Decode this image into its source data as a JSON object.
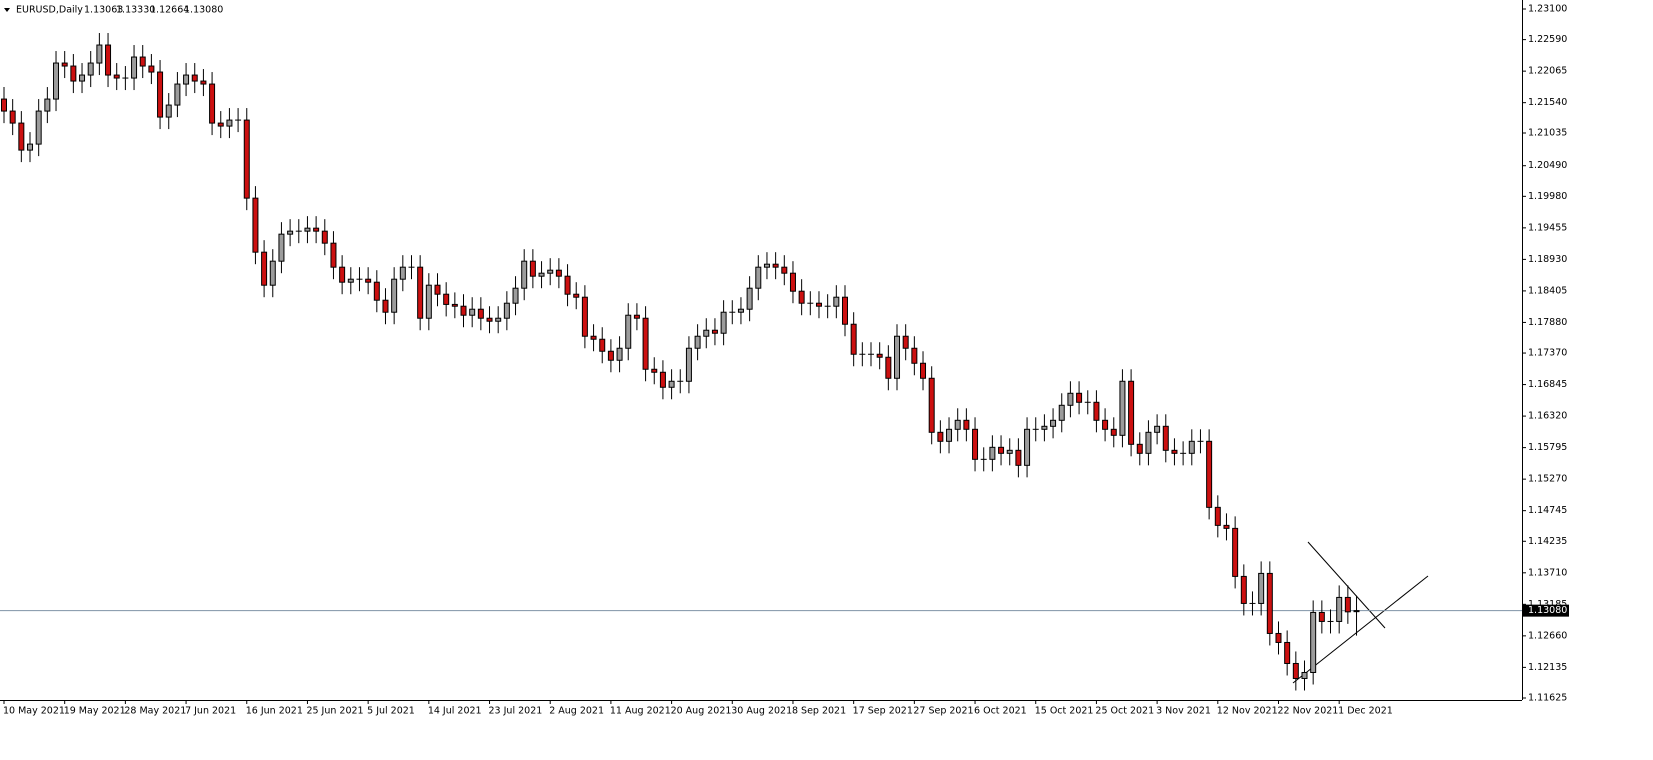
{
  "chart_data": {
    "type": "candlestick",
    "header": {
      "symbol": "EURUSD,Daily",
      "ohlc": [
        "1.13063",
        "1.13330",
        "1.12664",
        "1.13080"
      ]
    },
    "categories": [
      "10 May 2021",
      null,
      null,
      null,
      null,
      null,
      null,
      "19 May 2021",
      null,
      null,
      null,
      null,
      null,
      null,
      "28 May 2021",
      null,
      null,
      null,
      null,
      null,
      null,
      "7 Jun 2021",
      null,
      null,
      null,
      null,
      null,
      null,
      "16 Jun 2021",
      null,
      null,
      null,
      null,
      null,
      null,
      "25 Jun 2021",
      null,
      null,
      null,
      null,
      null,
      null,
      "5 Jul 2021",
      null,
      null,
      null,
      null,
      null,
      null,
      "14 Jul 2021",
      null,
      null,
      null,
      null,
      null,
      null,
      "23 Jul 2021",
      null,
      null,
      null,
      null,
      null,
      null,
      "2 Aug 2021",
      null,
      null,
      null,
      null,
      null,
      null,
      "11 Aug 2021",
      null,
      null,
      null,
      null,
      null,
      null,
      "20 Aug 2021",
      null,
      null,
      null,
      null,
      null,
      null,
      "30 Aug 2021",
      null,
      null,
      null,
      null,
      null,
      null,
      "8 Sep 2021",
      null,
      null,
      null,
      null,
      null,
      null,
      "17 Sep 2021",
      null,
      null,
      null,
      null,
      null,
      null,
      "27 Sep 2021",
      null,
      null,
      null,
      null,
      null,
      null,
      "6 Oct 2021",
      null,
      null,
      null,
      null,
      null,
      null,
      "15 Oct 2021",
      null,
      null,
      null,
      null,
      null,
      null,
      "25 Oct 2021",
      null,
      null,
      null,
      null,
      null,
      null,
      "3 Nov 2021",
      null,
      null,
      null,
      null,
      null,
      null,
      "12 Nov 2021",
      null,
      null,
      null,
      null,
      null,
      null,
      "22 Nov 2021",
      null,
      null,
      null,
      null,
      null,
      null,
      "1 Dec 2021",
      null,
      null
    ],
    "open": [
      1.216,
      1.214,
      1.212,
      1.2075,
      1.2085,
      1.214,
      1.216,
      1.222,
      1.2215,
      1.219,
      1.22,
      1.222,
      1.225,
      1.22,
      1.2195,
      1.2195,
      1.223,
      1.2215,
      1.2205,
      1.213,
      1.215,
      1.2185,
      1.22,
      1.219,
      1.2185,
      1.212,
      1.2115,
      1.2125,
      1.2125,
      1.1995,
      1.1905,
      1.185,
      1.189,
      1.1935,
      1.194,
      1.194,
      1.1945,
      1.194,
      1.192,
      1.188,
      1.1855,
      1.186,
      1.186,
      1.1855,
      1.1825,
      1.1805,
      1.186,
      1.188,
      1.188,
      1.1795,
      1.185,
      1.1835,
      1.1818,
      1.1815,
      1.18,
      1.181,
      1.1795,
      1.179,
      1.1795,
      1.182,
      1.1845,
      1.189,
      1.1865,
      1.187,
      1.1875,
      1.1865,
      1.1835,
      1.183,
      1.1765,
      1.176,
      1.174,
      1.1725,
      1.1745,
      1.18,
      1.1795,
      1.171,
      1.1705,
      1.168,
      1.169,
      1.169,
      1.1745,
      1.1765,
      1.1775,
      1.177,
      1.1805,
      1.1805,
      1.181,
      1.1845,
      1.188,
      1.1885,
      1.188,
      1.187,
      1.184,
      1.182,
      1.182,
      1.1815,
      1.1815,
      1.183,
      1.1785,
      1.1735,
      1.1735,
      1.1735,
      1.173,
      1.1695,
      1.1765,
      1.1745,
      1.172,
      1.1695,
      1.1605,
      1.159,
      1.161,
      1.1625,
      1.161,
      1.156,
      1.156,
      1.158,
      1.157,
      1.1575,
      1.155,
      1.161,
      1.161,
      1.1615,
      1.1625,
      1.165,
      1.167,
      1.1655,
      1.1655,
      1.1625,
      1.161,
      1.16,
      1.169,
      1.1585,
      1.157,
      1.1605,
      1.1615,
      1.1575,
      1.157,
      1.157,
      1.159,
      1.159,
      1.148,
      1.145,
      1.1445,
      1.1365,
      1.132,
      1.132,
      1.137,
      1.127,
      1.1255,
      1.122,
      1.1195,
      1.1205,
      1.1305,
      1.129,
      1.129,
      1.133,
      1.13063
    ],
    "high": [
      1.218,
      1.216,
      1.214,
      1.2105,
      1.216,
      1.218,
      1.224,
      1.224,
      1.2235,
      1.222,
      1.224,
      1.227,
      1.227,
      1.222,
      1.2215,
      1.225,
      1.225,
      1.2235,
      1.2225,
      1.217,
      1.2205,
      1.222,
      1.222,
      1.221,
      1.2205,
      1.214,
      1.2145,
      1.2145,
      1.2145,
      1.2015,
      1.1925,
      1.191,
      1.1955,
      1.196,
      1.196,
      1.1965,
      1.1965,
      1.196,
      1.194,
      1.19,
      1.188,
      1.188,
      1.188,
      1.1875,
      1.1845,
      1.188,
      1.19,
      1.19,
      1.19,
      1.187,
      1.187,
      1.1855,
      1.1838,
      1.1835,
      1.183,
      1.183,
      1.1815,
      1.1815,
      1.184,
      1.1865,
      1.191,
      1.191,
      1.189,
      1.1895,
      1.1895,
      1.1885,
      1.1855,
      1.185,
      1.1785,
      1.178,
      1.176,
      1.1765,
      1.182,
      1.182,
      1.1815,
      1.173,
      1.1725,
      1.171,
      1.171,
      1.1765,
      1.1785,
      1.1795,
      1.1795,
      1.1825,
      1.1825,
      1.183,
      1.1865,
      1.19,
      1.1905,
      1.1905,
      1.19,
      1.189,
      1.186,
      1.184,
      1.184,
      1.1835,
      1.185,
      1.185,
      1.1805,
      1.1755,
      1.1755,
      1.1755,
      1.175,
      1.1785,
      1.1785,
      1.1765,
      1.174,
      1.1715,
      1.1625,
      1.163,
      1.1645,
      1.1645,
      1.163,
      1.158,
      1.16,
      1.16,
      1.1595,
      1.1595,
      1.163,
      1.163,
      1.1635,
      1.1645,
      1.167,
      1.169,
      1.169,
      1.1675,
      1.1675,
      1.1645,
      1.163,
      1.171,
      1.171,
      1.1605,
      1.1625,
      1.1635,
      1.1635,
      1.1595,
      1.159,
      1.161,
      1.161,
      1.161,
      1.15,
      1.147,
      1.1465,
      1.1385,
      1.134,
      1.139,
      1.139,
      1.129,
      1.1275,
      1.124,
      1.1225,
      1.1325,
      1.1325,
      1.131,
      1.135,
      1.135,
      1.1333
    ],
    "low": [
      1.212,
      1.21,
      1.2055,
      1.2055,
      1.2065,
      1.212,
      1.214,
      1.2195,
      1.217,
      1.217,
      1.218,
      1.22,
      1.218,
      1.2175,
      1.2175,
      1.2175,
      1.2195,
      1.2185,
      1.211,
      1.211,
      1.213,
      1.2165,
      1.217,
      1.2165,
      1.21,
      1.2095,
      1.2095,
      1.2105,
      1.1975,
      1.1885,
      1.183,
      1.183,
      1.187,
      1.1915,
      1.192,
      1.192,
      1.192,
      1.19,
      1.186,
      1.1835,
      1.1835,
      1.184,
      1.1835,
      1.1805,
      1.1785,
      1.1785,
      1.184,
      1.186,
      1.1775,
      1.1775,
      1.1815,
      1.1798,
      1.1795,
      1.178,
      1.178,
      1.1775,
      1.177,
      1.177,
      1.1775,
      1.18,
      1.1825,
      1.1845,
      1.1845,
      1.185,
      1.1845,
      1.1815,
      1.181,
      1.1745,
      1.174,
      1.172,
      1.1705,
      1.1705,
      1.1725,
      1.1775,
      1.169,
      1.1685,
      1.166,
      1.166,
      1.167,
      1.167,
      1.1725,
      1.1745,
      1.175,
      1.175,
      1.1785,
      1.1785,
      1.179,
      1.1825,
      1.186,
      1.186,
      1.185,
      1.182,
      1.18,
      1.18,
      1.1795,
      1.1795,
      1.1795,
      1.1765,
      1.1715,
      1.1715,
      1.1715,
      1.171,
      1.1675,
      1.1675,
      1.1725,
      1.17,
      1.1675,
      1.1585,
      1.157,
      1.157,
      1.159,
      1.159,
      1.154,
      1.154,
      1.154,
      1.155,
      1.155,
      1.153,
      1.153,
      1.159,
      1.159,
      1.1595,
      1.1605,
      1.163,
      1.1635,
      1.1635,
      1.1605,
      1.159,
      1.158,
      1.158,
      1.1565,
      1.155,
      1.155,
      1.1585,
      1.1555,
      1.155,
      1.155,
      1.155,
      1.157,
      1.146,
      1.143,
      1.1425,
      1.1345,
      1.13,
      1.13,
      1.13,
      1.125,
      1.1235,
      1.12,
      1.1175,
      1.1175,
      1.1185,
      1.127,
      1.127,
      1.127,
      1.1286,
      1.12664
    ],
    "close": [
      1.214,
      1.212,
      1.2075,
      1.2085,
      1.214,
      1.216,
      1.222,
      1.2215,
      1.219,
      1.22,
      1.222,
      1.225,
      1.22,
      1.2195,
      1.2195,
      1.223,
      1.2215,
      1.2205,
      1.213,
      1.215,
      1.2185,
      1.22,
      1.219,
      1.2185,
      1.212,
      1.2115,
      1.2125,
      1.2125,
      1.1995,
      1.1905,
      1.185,
      1.189,
      1.1935,
      1.194,
      1.194,
      1.1945,
      1.194,
      1.192,
      1.188,
      1.1855,
      1.186,
      1.186,
      1.1855,
      1.1825,
      1.1805,
      1.186,
      1.188,
      1.188,
      1.1795,
      1.185,
      1.1835,
      1.1818,
      1.1815,
      1.18,
      1.181,
      1.1795,
      1.179,
      1.1795,
      1.182,
      1.1845,
      1.189,
      1.1865,
      1.187,
      1.1875,
      1.1865,
      1.1835,
      1.183,
      1.1765,
      1.176,
      1.174,
      1.1725,
      1.1745,
      1.18,
      1.1795,
      1.171,
      1.1705,
      1.168,
      1.169,
      1.169,
      1.1745,
      1.1765,
      1.1775,
      1.177,
      1.1805,
      1.1805,
      1.181,
      1.1845,
      1.188,
      1.1885,
      1.188,
      1.187,
      1.184,
      1.182,
      1.182,
      1.1815,
      1.1815,
      1.183,
      1.1785,
      1.1735,
      1.1735,
      1.1735,
      1.173,
      1.1695,
      1.1765,
      1.1745,
      1.172,
      1.1695,
      1.1605,
      1.159,
      1.161,
      1.1625,
      1.161,
      1.156,
      1.156,
      1.158,
      1.157,
      1.1575,
      1.155,
      1.161,
      1.161,
      1.1615,
      1.1625,
      1.165,
      1.167,
      1.1655,
      1.1655,
      1.1625,
      1.161,
      1.16,
      1.169,
      1.1585,
      1.157,
      1.1605,
      1.1615,
      1.1575,
      1.157,
      1.157,
      1.159,
      1.159,
      1.148,
      1.145,
      1.1445,
      1.1365,
      1.132,
      1.132,
      1.137,
      1.127,
      1.1255,
      1.122,
      1.1195,
      1.1205,
      1.1305,
      1.129,
      1.129,
      1.133,
      1.1306,
      1.1308
    ],
    "colors": {
      "up": "#9c9c9c",
      "down": "#cc1010",
      "outline": "#000000",
      "price_line": "#7f93a6"
    },
    "ylim": [
      1.11625,
      1.231
    ],
    "yticks": [
      {
        "value": 1.231,
        "label": "1.23100"
      },
      {
        "value": 1.2259,
        "label": "1.22590"
      },
      {
        "value": 1.22065,
        "label": "1.22065"
      },
      {
        "value": 1.2154,
        "label": "1.21540"
      },
      {
        "value": 1.21035,
        "label": "1.21035"
      },
      {
        "value": 1.2049,
        "label": "1.20490"
      },
      {
        "value": 1.1998,
        "label": "1.19980"
      },
      {
        "value": 1.19455,
        "label": "1.19455"
      },
      {
        "value": 1.1893,
        "label": "1.18930"
      },
      {
        "value": 1.18405,
        "label": "1.18405"
      },
      {
        "value": 1.1788,
        "label": "1.17880"
      },
      {
        "value": 1.1737,
        "label": "1.17370"
      },
      {
        "value": 1.16845,
        "label": "1.16845"
      },
      {
        "value": 1.1632,
        "label": "1.16320"
      },
      {
        "value": 1.15795,
        "label": "1.15795"
      },
      {
        "value": 1.1527,
        "label": "1.15270"
      },
      {
        "value": 1.14745,
        "label": "1.14745"
      },
      {
        "value": 1.14235,
        "label": "1.14235"
      },
      {
        "value": 1.1371,
        "label": "1.13710"
      },
      {
        "value": 1.13185,
        "label": "1.13185"
      },
      {
        "value": 1.1266,
        "label": "1.12660"
      },
      {
        "value": 1.12135,
        "label": "1.12135"
      },
      {
        "value": 1.11625,
        "label": "1.11625"
      }
    ],
    "current_price": {
      "value": 1.1308,
      "label": "1.13080"
    },
    "grid": false
  }
}
